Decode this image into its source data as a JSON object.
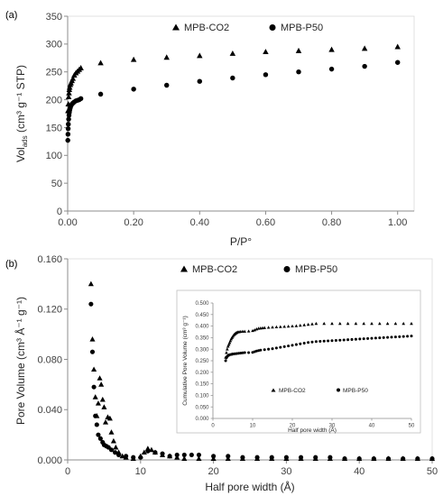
{
  "chart_data": [
    {
      "panel": "(a)",
      "type": "scatter",
      "xlabel": "P/P°",
      "ylabel": "Vol",
      "ylabel_sub": "ads",
      "ylabel_tail": " (cm³ g⁻¹ STP)",
      "xlim": [
        0,
        1.05
      ],
      "ylim": [
        0,
        350
      ],
      "xticks": [
        "0.00",
        "0.20",
        "0.40",
        "0.60",
        "0.80",
        "1.00"
      ],
      "yticks": [
        "0",
        "50",
        "100",
        "150",
        "200",
        "250",
        "300",
        "350"
      ],
      "legend_position": "top",
      "series": [
        {
          "name": "MPB-CO2",
          "marker": "triangle",
          "x": [
            0.001,
            0.002,
            0.003,
            0.004,
            0.005,
            0.006,
            0.008,
            0.01,
            0.013,
            0.016,
            0.02,
            0.025,
            0.03,
            0.035,
            0.04,
            0.1,
            0.2,
            0.3,
            0.4,
            0.5,
            0.6,
            0.7,
            0.8,
            0.9,
            1.0
          ],
          "y": [
            180,
            192,
            205,
            212,
            218,
            222,
            227,
            230,
            234,
            238,
            244,
            248,
            251,
            254,
            257,
            266,
            272,
            276,
            279,
            283,
            286,
            288,
            290,
            292,
            295
          ]
        },
        {
          "name": "MPB-P50",
          "marker": "circle",
          "x": [
            0.0005,
            0.001,
            0.0015,
            0.002,
            0.003,
            0.004,
            0.005,
            0.006,
            0.007,
            0.008,
            0.01,
            0.013,
            0.016,
            0.02,
            0.025,
            0.03,
            0.035,
            0.04,
            0.1,
            0.2,
            0.3,
            0.4,
            0.5,
            0.6,
            0.7,
            0.8,
            0.9,
            1.0
          ],
          "y": [
            127,
            138,
            148,
            156,
            165,
            172,
            177,
            181,
            184,
            186,
            189,
            192,
            194,
            196,
            198,
            199,
            200,
            202,
            210,
            219,
            226,
            233,
            239,
            245,
            250,
            255,
            260,
            267
          ]
        }
      ]
    },
    {
      "panel": "(b)",
      "type": "scatter",
      "xlabel": "Half pore width (Å)",
      "ylabel": "Pore Volume (cm³ Å⁻¹ g⁻¹)",
      "xlim": [
        0,
        50
      ],
      "ylim": [
        0,
        0.16
      ],
      "xticks": [
        "0",
        "10",
        "20",
        "30",
        "40",
        "50"
      ],
      "yticks": [
        "0.000",
        "0.040",
        "0.080",
        "0.120",
        "0.160"
      ],
      "legend_position": "top-right",
      "series": [
        {
          "name": "MPB-CO2",
          "marker": "triangle",
          "x": [
            3.2,
            3.4,
            3.6,
            3.8,
            4.0,
            4.2,
            4.4,
            4.6,
            4.8,
            5.0,
            5.2,
            5.5,
            5.8,
            6.0,
            6.3,
            6.6,
            7.0,
            7.5,
            8.0,
            9.0,
            10.0,
            10.5,
            11.0,
            11.5,
            12.0,
            13.0,
            14.0,
            15.0,
            16.0,
            18.0,
            20.0,
            22.0,
            24.0,
            26.0,
            28.0,
            30.0,
            32.0,
            34.0,
            36.0,
            38.0,
            40.0,
            42.0,
            44.0,
            46.0,
            48.0,
            50.0
          ],
          "y": [
            0.14,
            0.096,
            0.072,
            0.05,
            0.035,
            0.045,
            0.065,
            0.06,
            0.048,
            0.042,
            0.03,
            0.034,
            0.033,
            0.022,
            0.015,
            0.01,
            0.006,
            0.003,
            0.002,
            0.001,
            0.003,
            0.006,
            0.009,
            0.008,
            0.006,
            0.004,
            0.003,
            0.002,
            0.001,
            0.001,
            0.001,
            0.001,
            0.001,
            0.001,
            0.001,
            0.001,
            0.001,
            0.001,
            0.001,
            0.001,
            0.001,
            0.001,
            0.001,
            0.001,
            0.001,
            0.001
          ]
        },
        {
          "name": "MPB-P50",
          "marker": "circle",
          "x": [
            3.2,
            3.4,
            3.6,
            3.8,
            4.0,
            4.2,
            4.5,
            4.8,
            5.0,
            5.3,
            5.6,
            6.0,
            6.5,
            7.0,
            8.0,
            9.0,
            10.0,
            11.0,
            12.0,
            13.0,
            14.0,
            15.0,
            16.0,
            17.0,
            18.0,
            20.0,
            22.0,
            24.0,
            26.0,
            28.0,
            30.0,
            32.0,
            34.0,
            36.0,
            38.0,
            40.0,
            42.0,
            44.0,
            46.0,
            48.0,
            50.0
          ],
          "y": [
            0.124,
            0.086,
            0.058,
            0.035,
            0.028,
            0.02,
            0.017,
            0.014,
            0.012,
            0.011,
            0.01,
            0.008,
            0.006,
            0.004,
            0.003,
            0.002,
            0.002,
            0.007,
            0.006,
            0.005,
            0.003,
            0.004,
            0.004,
            0.004,
            0.004,
            0.003,
            0.003,
            0.002,
            0.002,
            0.002,
            0.002,
            0.002,
            0.002,
            0.002,
            0.001,
            0.001,
            0.001,
            0.001,
            0.001,
            0.001,
            0.001
          ]
        }
      ]
    },
    {
      "panel": "inset",
      "type": "scatter",
      "xlabel": "Half pore width (Å)",
      "ylabel": "Cumulative Pore Volume (cm³ g⁻¹)",
      "xlim": [
        0,
        50
      ],
      "ylim": [
        0,
        0.5
      ],
      "xticks": [
        "0",
        "10",
        "20",
        "30",
        "40",
        "50"
      ],
      "yticks": [
        "0.000",
        "0.050",
        "0.100",
        "0.150",
        "0.200",
        "0.250",
        "0.300",
        "0.350",
        "0.400",
        "0.450",
        "0.500"
      ],
      "legend_position": "bottom",
      "series": [
        {
          "name": "MPB-CO2",
          "marker": "triangle",
          "x": [
            3.2,
            3.4,
            3.6,
            3.8,
            4.0,
            4.2,
            4.4,
            4.6,
            4.8,
            5.0,
            5.2,
            5.4,
            5.6,
            5.8,
            6.0,
            6.3,
            6.6,
            7.0,
            7.5,
            8.0,
            9.0,
            10.0,
            10.5,
            11.0,
            11.5,
            12.0,
            12.5,
            13.0,
            14.0,
            15.0,
            16.0,
            17.0,
            18.0,
            19.0,
            20.0,
            21.0,
            22.0,
            23.0,
            24.0,
            25.0,
            26.0,
            28.0,
            30.0,
            32.0,
            34.0,
            36.0,
            38.0,
            40.0,
            42.0,
            44.0,
            46.0,
            48.0,
            50.0
          ],
          "y": [
            0.265,
            0.285,
            0.3,
            0.312,
            0.32,
            0.328,
            0.336,
            0.344,
            0.35,
            0.355,
            0.36,
            0.364,
            0.367,
            0.37,
            0.372,
            0.374,
            0.375,
            0.376,
            0.377,
            0.377,
            0.378,
            0.38,
            0.383,
            0.387,
            0.39,
            0.391,
            0.392,
            0.393,
            0.394,
            0.395,
            0.396,
            0.397,
            0.398,
            0.399,
            0.4,
            0.401,
            0.403,
            0.405,
            0.407,
            0.409,
            0.411,
            0.411,
            0.411,
            0.411,
            0.411,
            0.411,
            0.411,
            0.411,
            0.411,
            0.411,
            0.411,
            0.411,
            0.411
          ]
        },
        {
          "name": "MPB-P50",
          "marker": "circle",
          "x": [
            3.2,
            3.4,
            3.6,
            3.8,
            4.0,
            4.2,
            4.5,
            4.8,
            5.0,
            5.5,
            6.0,
            6.5,
            7.0,
            7.5,
            8.0,
            9.0,
            10.0,
            10.5,
            11.0,
            11.5,
            12.0,
            13.0,
            14.0,
            15.0,
            16.0,
            17.0,
            18.0,
            19.0,
            20.0,
            21.0,
            22.0,
            23.0,
            24.0,
            25.0,
            26.0,
            27.0,
            28.0,
            29.0,
            30.0,
            31.0,
            32.0,
            33.0,
            34.0,
            35.0,
            36.0,
            37.0,
            38.0,
            39.0,
            40.0,
            41.0,
            42.0,
            43.0,
            44.0,
            45.0,
            46.0,
            47.0,
            48.0,
            49.0,
            50.0
          ],
          "y": [
            0.25,
            0.262,
            0.268,
            0.272,
            0.274,
            0.276,
            0.277,
            0.278,
            0.279,
            0.28,
            0.281,
            0.282,
            0.283,
            0.284,
            0.285,
            0.285,
            0.286,
            0.289,
            0.292,
            0.294,
            0.296,
            0.298,
            0.3,
            0.302,
            0.305,
            0.308,
            0.311,
            0.314,
            0.317,
            0.32,
            0.323,
            0.326,
            0.329,
            0.331,
            0.333,
            0.334,
            0.335,
            0.336,
            0.337,
            0.338,
            0.339,
            0.34,
            0.341,
            0.342,
            0.343,
            0.344,
            0.345,
            0.346,
            0.347,
            0.348,
            0.349,
            0.35,
            0.351,
            0.352,
            0.353,
            0.354,
            0.355,
            0.356,
            0.357
          ]
        }
      ]
    }
  ]
}
